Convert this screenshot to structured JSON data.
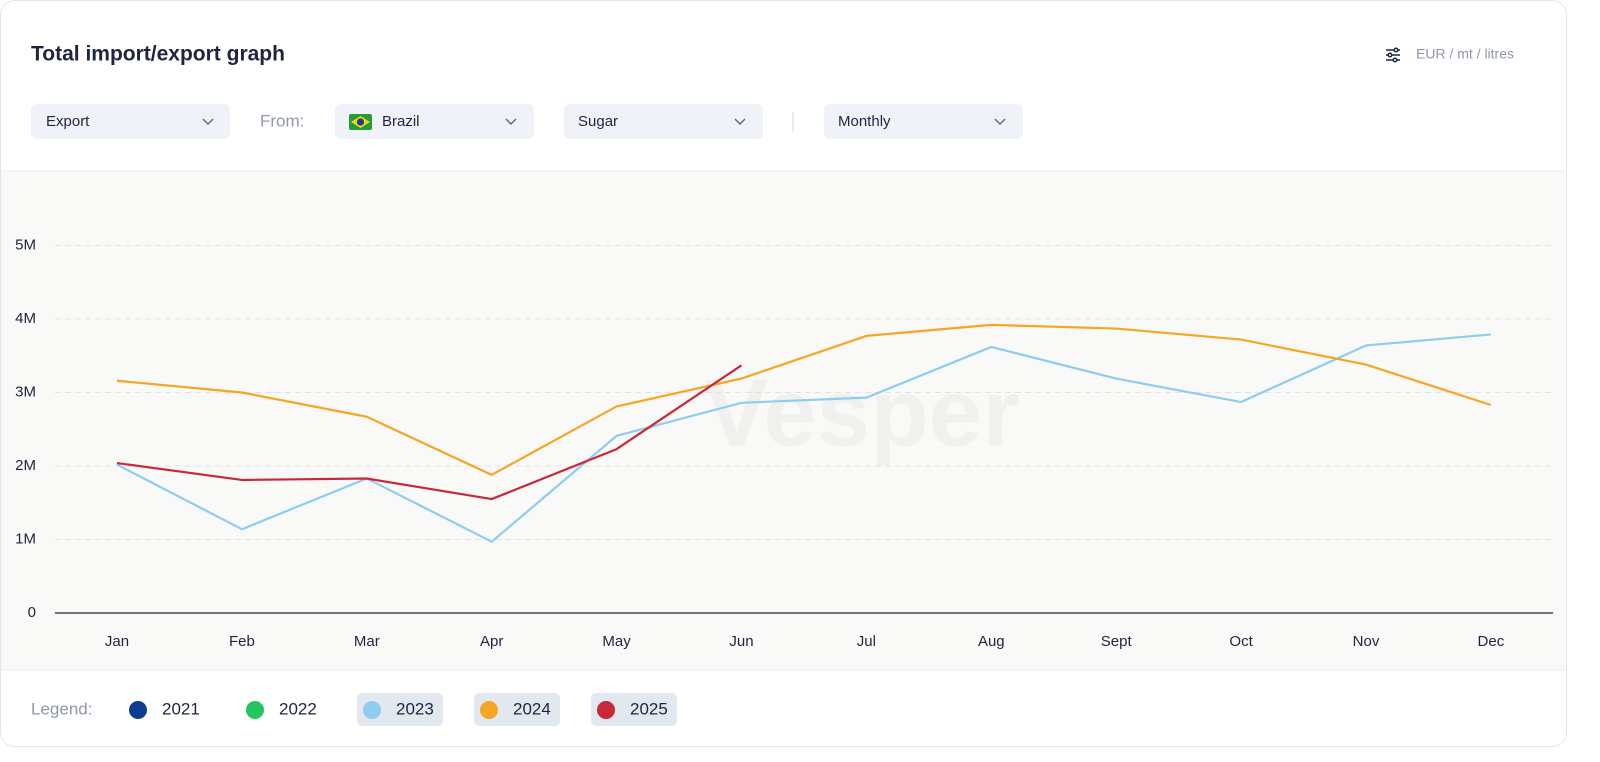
{
  "header": {
    "title": "Total import/export graph",
    "units": "EUR / mt / litres"
  },
  "filters": {
    "flow": "Export",
    "from_label": "From:",
    "country": "Brazil",
    "product": "Sugar",
    "period": "Monthly"
  },
  "legend_label": "Legend:",
  "watermark": "Vesper",
  "chart_data": {
    "type": "line",
    "categories": [
      "Jan",
      "Feb",
      "Mar",
      "Apr",
      "May",
      "Jun",
      "Jul",
      "Aug",
      "Sept",
      "Oct",
      "Nov",
      "Dec"
    ],
    "series": [
      {
        "name": "2021",
        "color": "#0b3d91",
        "values": [
          null,
          null,
          null,
          null,
          null,
          null,
          null,
          null,
          null,
          null,
          null,
          null
        ]
      },
      {
        "name": "2022",
        "color": "#22c55e",
        "values": [
          null,
          null,
          null,
          null,
          null,
          null,
          null,
          null,
          null,
          null,
          null,
          null
        ]
      },
      {
        "name": "2023",
        "color": "#8ecdf0",
        "values": [
          2020000,
          1140000,
          1830000,
          970000,
          2410000,
          2860000,
          2930000,
          3620000,
          3190000,
          2870000,
          3640000,
          3790000
        ]
      },
      {
        "name": "2024",
        "color": "#f5a623",
        "values": [
          3160000,
          3000000,
          2670000,
          1880000,
          2810000,
          3190000,
          3770000,
          3920000,
          3870000,
          3720000,
          3380000,
          2830000
        ]
      },
      {
        "name": "2025",
        "color": "#c8283a",
        "values": [
          2040000,
          1810000,
          1830000,
          1550000,
          2230000,
          3370000,
          null,
          null,
          null,
          null,
          null,
          null
        ]
      }
    ],
    "ylim": [
      0,
      6000000
    ],
    "yticks": [
      0,
      {
        "value": 1000000,
        "label": "1M"
      },
      {
        "value": 2000000,
        "label": "2M"
      },
      {
        "value": 3000000,
        "label": "3M"
      },
      {
        "value": 4000000,
        "label": "4M"
      },
      {
        "value": 5000000,
        "label": "5M"
      }
    ],
    "grid": true
  }
}
